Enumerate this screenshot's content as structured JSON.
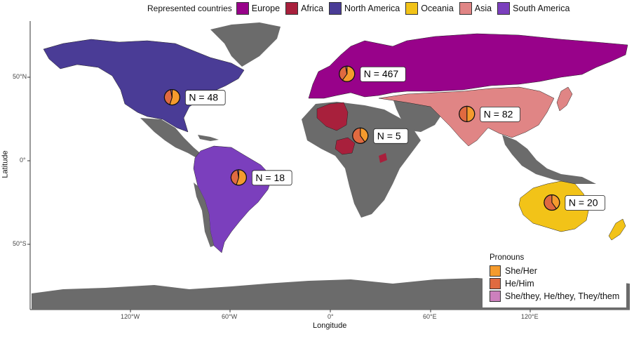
{
  "legend_regions": {
    "title": "Represented countries",
    "items": [
      {
        "label": "Europe",
        "color": "#98028a"
      },
      {
        "label": "Africa",
        "color": "#a8203c"
      },
      {
        "label": "North America",
        "color": "#4a3c96"
      },
      {
        "label": "Oceania",
        "color": "#f2c318"
      },
      {
        "label": "Asia",
        "color": "#e08585"
      },
      {
        "label": "South America",
        "color": "#7b3fbd"
      }
    ]
  },
  "legend_pronouns": {
    "title": "Pronouns",
    "items": [
      {
        "label": "She/Her",
        "color": "#f59b2d"
      },
      {
        "label": "He/Him",
        "color": "#e06a40"
      },
      {
        "label": "She/they, He/they, They/them",
        "color": "#cc80bd"
      }
    ]
  },
  "axes": {
    "xlabel": "Longitude",
    "ylabel": "Latitude",
    "xticks": [
      "120°W",
      "60°W",
      "0°",
      "60°E",
      "120°E"
    ],
    "yticks": [
      "50°N",
      "0°",
      "50°S"
    ]
  },
  "colors": {
    "land_other": "#6b6b6b",
    "ocean": "#ffffff"
  },
  "annotations": [
    {
      "region": "North America",
      "label": "N = 48",
      "lon": -95,
      "lat": 38,
      "she": 0.55,
      "he": 0.42,
      "they": 0.03
    },
    {
      "region": "Europe",
      "label": "N = 467",
      "lon": 10,
      "lat": 52,
      "she": 0.6,
      "he": 0.37,
      "they": 0.03
    },
    {
      "region": "Asia",
      "label": "N = 82",
      "lon": 82,
      "lat": 28,
      "she": 0.5,
      "he": 0.5,
      "they": 0.0
    },
    {
      "region": "Africa",
      "label": "N = 5",
      "lon": 18,
      "lat": 15,
      "she": 0.4,
      "he": 0.6,
      "they": 0.0
    },
    {
      "region": "South America",
      "label": "N = 18",
      "lon": -55,
      "lat": -10,
      "she": 0.55,
      "he": 0.42,
      "they": 0.03
    },
    {
      "region": "Oceania",
      "label": "N = 20",
      "lon": 133,
      "lat": -25,
      "she": 0.4,
      "he": 0.6,
      "they": 0.0
    }
  ]
}
